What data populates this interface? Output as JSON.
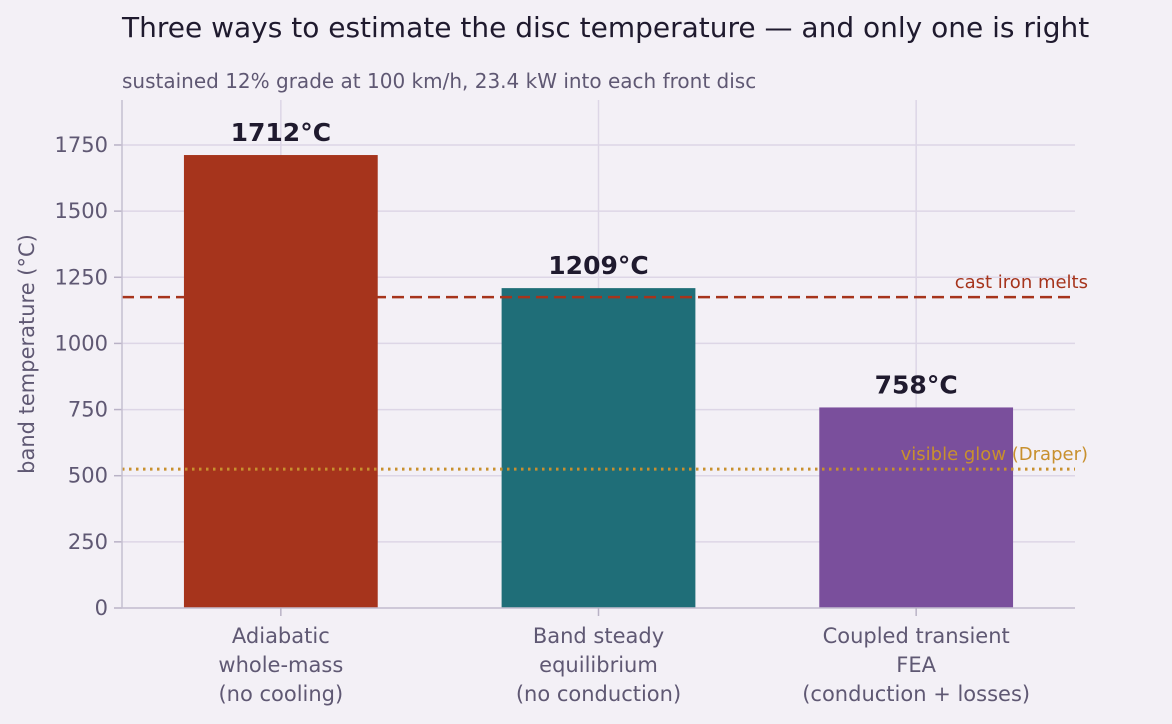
{
  "chart_data": {
    "type": "bar",
    "title": "Three ways to estimate the disc temperature — and only one is right",
    "subtitle": "sustained 12% grade at 100 km/h, 23.4 kW into each front disc",
    "xlabel": "",
    "ylabel": "band temperature (°C)",
    "ylim": [
      0,
      1920
    ],
    "yticks": [
      0,
      250,
      500,
      750,
      1000,
      1250,
      1500,
      1750
    ],
    "grid": true,
    "categories": [
      [
        "Adiabatic",
        "whole-mass",
        "(no cooling)"
      ],
      [
        "Band steady",
        "equilibrium",
        "(no conduction)"
      ],
      [
        "Coupled transient",
        "FEA",
        "(conduction + losses)"
      ]
    ],
    "values": [
      1712,
      1209,
      758
    ],
    "value_labels": [
      "1712°C",
      "1209°C",
      "758°C"
    ],
    "colors": [
      "#a6341c",
      "#1f6e78",
      "#7a4f9c"
    ],
    "reference_lines": [
      {
        "label": "cast iron melts",
        "value": 1175,
        "style": "dashed",
        "color": "#a6341c"
      },
      {
        "label": "visible glow (Draper)",
        "value": 525,
        "style": "dotted",
        "color": "#c8902e"
      }
    ]
  }
}
